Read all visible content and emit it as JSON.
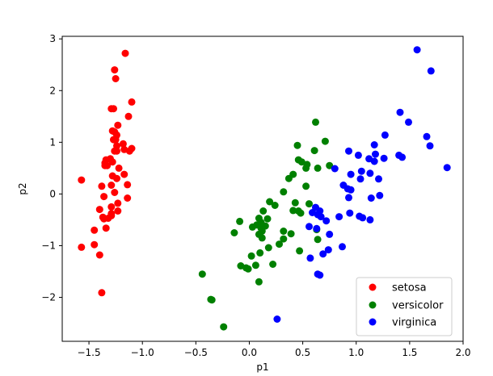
{
  "chart_data": {
    "type": "scatter",
    "title": "",
    "xlabel": "p1",
    "ylabel": "p2",
    "xlim": [
      -1.75,
      2.0
    ],
    "ylim": [
      -2.85,
      3.05
    ],
    "xticks": [
      -1.5,
      -1.0,
      -0.5,
      0.0,
      0.5,
      1.0,
      1.5,
      2.0
    ],
    "xtick_labels": [
      "−1.5",
      "−1.0",
      "−0.5",
      "0.0",
      "0.5",
      "1.0",
      "1.5",
      "2.0"
    ],
    "yticks": [
      -2,
      -1,
      0,
      1,
      2,
      3
    ],
    "ytick_labels": [
      "−2",
      "−1",
      "0",
      "1",
      "2",
      "3"
    ],
    "grid": false,
    "legend_position": "lower-right",
    "series": [
      {
        "name": "setosa",
        "color": "#ff0000",
        "points": [
          [
            -1.16,
            2.72
          ],
          [
            -1.26,
            2.4
          ],
          [
            -1.25,
            2.23
          ],
          [
            -1.27,
            1.65
          ],
          [
            -1.29,
            1.65
          ],
          [
            -1.1,
            1.78
          ],
          [
            -1.13,
            1.5
          ],
          [
            -1.23,
            1.33
          ],
          [
            -1.28,
            1.22
          ],
          [
            -1.26,
            1.2
          ],
          [
            -1.24,
            1.14
          ],
          [
            -1.27,
            1.05
          ],
          [
            -1.25,
            1.05
          ],
          [
            -1.18,
            0.97
          ],
          [
            -1.24,
            0.93
          ],
          [
            -1.1,
            0.88
          ],
          [
            -1.17,
            0.86
          ],
          [
            -1.12,
            0.83
          ],
          [
            -1.26,
            0.83
          ],
          [
            -1.24,
            0.83
          ],
          [
            -1.3,
            0.68
          ],
          [
            -1.34,
            0.66
          ],
          [
            -1.35,
            0.6
          ],
          [
            -1.28,
            0.62
          ],
          [
            -1.33,
            0.55
          ],
          [
            -1.35,
            0.55
          ],
          [
            -1.22,
            0.5
          ],
          [
            -1.17,
            0.38
          ],
          [
            -1.28,
            0.35
          ],
          [
            -1.24,
            0.3
          ],
          [
            -1.14,
            0.18
          ],
          [
            -1.29,
            0.17
          ],
          [
            -1.38,
            0.15
          ],
          [
            -1.57,
            0.27
          ],
          [
            -1.26,
            0.03
          ],
          [
            -1.14,
            -0.08
          ],
          [
            -1.36,
            -0.05
          ],
          [
            -1.23,
            -0.18
          ],
          [
            -1.29,
            -0.25
          ],
          [
            -1.4,
            -0.3
          ],
          [
            -1.23,
            -0.33
          ],
          [
            -1.29,
            -0.38
          ],
          [
            -1.37,
            -0.45
          ],
          [
            -1.32,
            -0.47
          ],
          [
            -1.36,
            -0.48
          ],
          [
            -1.29,
            -0.42
          ],
          [
            -1.34,
            -0.66
          ],
          [
            -1.45,
            -0.7
          ],
          [
            -1.57,
            -1.03
          ],
          [
            -1.45,
            -0.98
          ],
          [
            -1.4,
            -1.18
          ],
          [
            -1.38,
            -1.91
          ]
        ]
      },
      {
        "name": "versicolor",
        "color": "#008000",
        "points": [
          [
            0.62,
            1.39
          ],
          [
            0.71,
            1.02
          ],
          [
            0.45,
            0.94
          ],
          [
            0.61,
            0.84
          ],
          [
            0.46,
            0.66
          ],
          [
            0.49,
            0.62
          ],
          [
            0.54,
            0.57
          ],
          [
            0.75,
            0.55
          ],
          [
            0.64,
            0.5
          ],
          [
            0.53,
            0.5
          ],
          [
            0.41,
            0.38
          ],
          [
            0.37,
            0.3
          ],
          [
            0.53,
            0.15
          ],
          [
            0.32,
            0.04
          ],
          [
            0.19,
            -0.15
          ],
          [
            0.24,
            -0.22
          ],
          [
            0.43,
            -0.17
          ],
          [
            0.56,
            -0.19
          ],
          [
            0.46,
            -0.33
          ],
          [
            0.41,
            -0.32
          ],
          [
            0.48,
            -0.37
          ],
          [
            0.13,
            -0.33
          ],
          [
            0.09,
            -0.47
          ],
          [
            0.17,
            -0.48
          ],
          [
            0.11,
            -0.55
          ],
          [
            -0.09,
            -0.53
          ],
          [
            0.07,
            -0.6
          ],
          [
            0.15,
            -0.62
          ],
          [
            0.11,
            -0.66
          ],
          [
            0.03,
            -0.64
          ],
          [
            0.12,
            -0.72
          ],
          [
            0.39,
            -0.77
          ],
          [
            0.63,
            -0.69
          ],
          [
            0.32,
            -0.72
          ],
          [
            -0.14,
            -0.75
          ],
          [
            0.09,
            -0.78
          ],
          [
            0.32,
            -0.87
          ],
          [
            0.12,
            -0.85
          ],
          [
            0.64,
            -0.88
          ],
          [
            0.28,
            -0.97
          ],
          [
            0.18,
            -1.04
          ],
          [
            0.1,
            -1.14
          ],
          [
            0.47,
            -1.1
          ],
          [
            0.02,
            -1.2
          ],
          [
            -0.08,
            -1.39
          ],
          [
            -0.03,
            -1.43
          ],
          [
            -0.01,
            -1.45
          ],
          [
            0.06,
            -1.38
          ],
          [
            0.22,
            -1.36
          ],
          [
            0.09,
            -1.7
          ],
          [
            -0.44,
            -1.55
          ],
          [
            -0.35,
            -2.05
          ],
          [
            -0.36,
            -2.04
          ],
          [
            -0.24,
            -2.57
          ]
        ]
      },
      {
        "name": "virginica",
        "color": "#0000ff",
        "points": [
          [
            1.57,
            2.79
          ],
          [
            1.7,
            2.38
          ],
          [
            1.41,
            1.58
          ],
          [
            1.49,
            1.39
          ],
          [
            1.27,
            1.14
          ],
          [
            1.66,
            1.11
          ],
          [
            1.17,
            0.95
          ],
          [
            1.69,
            0.93
          ],
          [
            0.93,
            0.83
          ],
          [
            1.02,
            0.75
          ],
          [
            1.18,
            0.77
          ],
          [
            1.4,
            0.75
          ],
          [
            1.43,
            0.71
          ],
          [
            1.26,
            0.69
          ],
          [
            1.12,
            0.68
          ],
          [
            1.17,
            0.63
          ],
          [
            0.8,
            0.49
          ],
          [
            1.05,
            0.44
          ],
          [
            1.13,
            0.4
          ],
          [
            0.95,
            0.38
          ],
          [
            1.04,
            0.29
          ],
          [
            1.21,
            0.29
          ],
          [
            0.88,
            0.17
          ],
          [
            0.92,
            0.1
          ],
          [
            0.95,
            0.08
          ],
          [
            1.85,
            0.51
          ],
          [
            1.22,
            -0.03
          ],
          [
            1.14,
            -0.08
          ],
          [
            0.93,
            -0.07
          ],
          [
            0.62,
            -0.26
          ],
          [
            0.66,
            -0.33
          ],
          [
            0.59,
            -0.36
          ],
          [
            0.67,
            -0.44
          ],
          [
            0.64,
            -0.4
          ],
          [
            0.84,
            -0.44
          ],
          [
            0.94,
            -0.37
          ],
          [
            1.03,
            -0.43
          ],
          [
            1.06,
            -0.46
          ],
          [
            1.13,
            -0.5
          ],
          [
            0.72,
            -0.52
          ],
          [
            0.56,
            -0.63
          ],
          [
            0.63,
            -0.67
          ],
          [
            0.75,
            -0.78
          ],
          [
            0.74,
            -1.08
          ],
          [
            0.69,
            -1.16
          ],
          [
            0.87,
            -1.02
          ],
          [
            0.57,
            -1.24
          ],
          [
            0.64,
            -1.55
          ],
          [
            0.66,
            -1.57
          ],
          [
            0.26,
            -2.42
          ]
        ]
      }
    ]
  }
}
